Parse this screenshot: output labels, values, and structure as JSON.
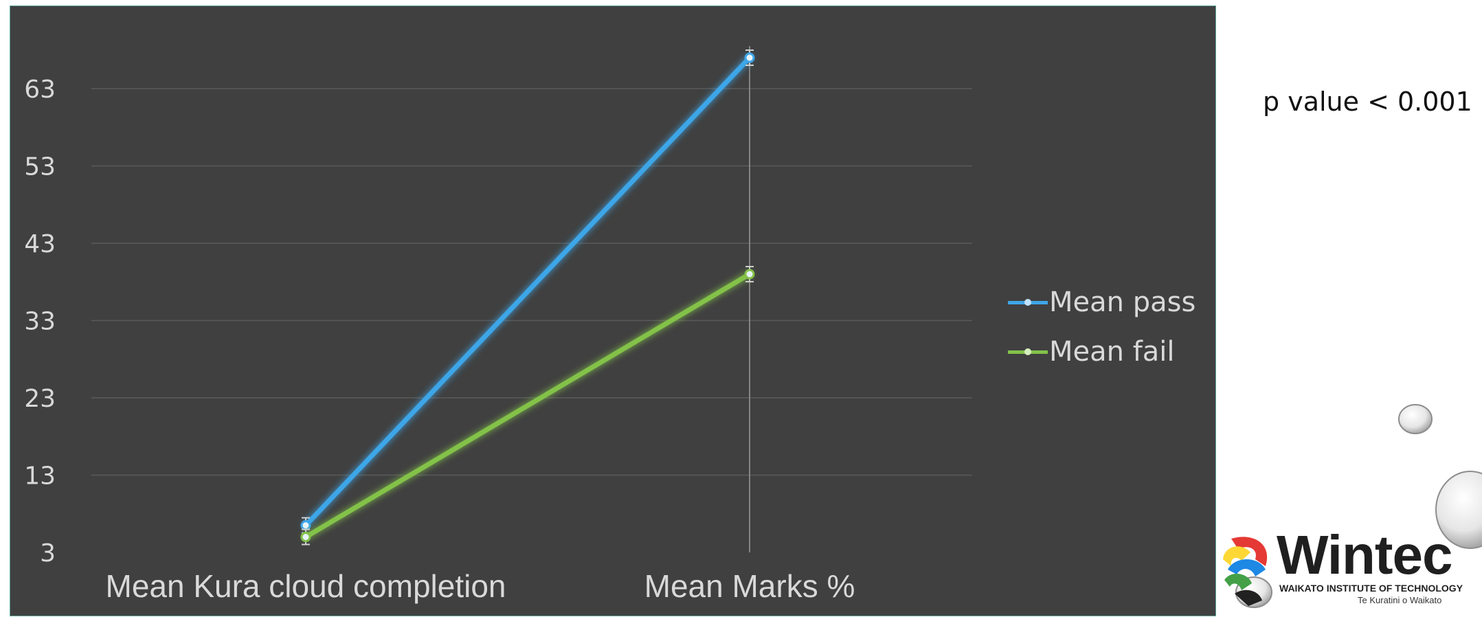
{
  "chart_data": {
    "type": "line",
    "categories": [
      "Mean Kura cloud completion",
      "Mean Marks %"
    ],
    "series": [
      {
        "name": "Mean pass",
        "values": [
          6.5,
          67
        ],
        "color": "#3ea6e8"
      },
      {
        "name": "Mean fail",
        "values": [
          5,
          39
        ],
        "color": "#83c24a"
      }
    ],
    "yticks": [
      3,
      13,
      23,
      33,
      43,
      53,
      63
    ],
    "ylim": [
      3,
      73
    ],
    "grid": true,
    "legend_position": "right",
    "error_bars": true
  },
  "annotation": {
    "text": "p value < 0.001"
  },
  "logo": {
    "wordmark": "Wintec",
    "line1": "WAIKATO INSTITUTE OF TECHNOLOGY",
    "line2": "Te Kuratini o Waikato"
  },
  "colors": {
    "plot_background": "#404040",
    "gridline": "#5a5a5a",
    "axis_text": "#d9d9d9"
  }
}
